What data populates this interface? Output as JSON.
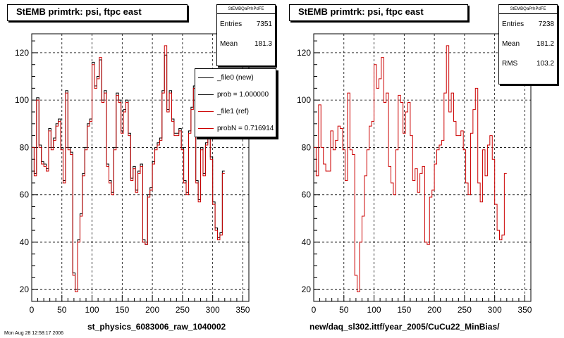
{
  "chart_data": [
    {
      "type": "histogram",
      "title": "StEMB primtrk: psi, ftpc east",
      "xlabel": "st_physics_6083006_raw_1040002",
      "xlim": [
        0,
        360
      ],
      "ylim": [
        15,
        128
      ],
      "xticks": [
        0,
        50,
        100,
        150,
        200,
        250,
        300,
        350
      ],
      "yticks": [
        20,
        40,
        60,
        80,
        100,
        120
      ],
      "grid": true,
      "bin_width": 4,
      "stats": {
        "name": "StEMBQaPrhPdFE",
        "rows": [
          {
            "label": "Entries",
            "value": "7351"
          },
          {
            "label": "Mean",
            "value": "181.3"
          }
        ]
      },
      "legend": {
        "placement": "top-right",
        "entries": [
          {
            "label": "_file0 (new)",
            "color": "#000000"
          },
          {
            "label": "prob = 1.000000",
            "color": "#000000"
          },
          {
            "label": "_file1 (ref)",
            "color": "#cc0000"
          },
          {
            "label": "probN = 0.716914",
            "color": "#cc0000"
          }
        ]
      },
      "series": [
        {
          "name": "_file0 (new)",
          "color": "#000000",
          "values": [
            80,
            69,
            101,
            81,
            74,
            73,
            71,
            88,
            80,
            84,
            90,
            92,
            80,
            66,
            104,
            80,
            78,
            27,
            20,
            41,
            52,
            69,
            80,
            90,
            92,
            116,
            106,
            110,
            117,
            100,
            104,
            73,
            66,
            61,
            80,
            103,
            100,
            87,
            96,
            100,
            86,
            67,
            72,
            62,
            70,
            73,
            41,
            39,
            60,
            63,
            74,
            80,
            82,
            84,
            104,
            119,
            96,
            104,
            92,
            86,
            86,
            88,
            80,
            66,
            61,
            87,
            97,
            106,
            66,
            58,
            80,
            69,
            82,
            86,
            76,
            57,
            46,
            42,
            44,
            70
          ]
        },
        {
          "name": "_file1 (ref)",
          "color": "#cc0000",
          "values": [
            80,
            68,
            100,
            80,
            73,
            72,
            70,
            87,
            79,
            83,
            89,
            91,
            79,
            65,
            103,
            79,
            77,
            26,
            19,
            40,
            51,
            68,
            79,
            89,
            91,
            115,
            105,
            109,
            118,
            99,
            103,
            72,
            65,
            60,
            79,
            102,
            99,
            86,
            95,
            99,
            85,
            66,
            71,
            61,
            69,
            72,
            40,
            39,
            59,
            62,
            73,
            79,
            81,
            83,
            103,
            123,
            95,
            103,
            91,
            85,
            85,
            87,
            79,
            65,
            60,
            86,
            96,
            105,
            65,
            57,
            79,
            68,
            81,
            85,
            75,
            56,
            45,
            41,
            43,
            69
          ]
        }
      ]
    },
    {
      "type": "histogram",
      "title": "StEMB primtrk: psi, ftpc east",
      "xlabel": "new/daq_sl302.ittf/year_2005/CuCu22_MinBias/",
      "xlim": [
        0,
        360
      ],
      "ylim": [
        15,
        128
      ],
      "xticks": [
        0,
        50,
        100,
        150,
        200,
        250,
        300,
        350
      ],
      "yticks": [
        20,
        40,
        60,
        80,
        100,
        120
      ],
      "grid": true,
      "bin_width": 4,
      "stats": {
        "name": "StEMBQaPrhPdFE",
        "rows": [
          {
            "label": "Entries",
            "value": "7238"
          },
          {
            "label": "Mean",
            "value": "181.2"
          },
          {
            "label": "RMS",
            "value": "103.2"
          }
        ]
      },
      "series": [
        {
          "name": "",
          "color": "#cc0000",
          "values": [
            80,
            68,
            98,
            80,
            73,
            70,
            70,
            87,
            79,
            83,
            89,
            88,
            79,
            66,
            103,
            79,
            77,
            26,
            19,
            40,
            51,
            68,
            79,
            89,
            91,
            115,
            105,
            109,
            118,
            99,
            103,
            72,
            65,
            60,
            79,
            102,
            99,
            86,
            95,
            99,
            85,
            66,
            71,
            61,
            69,
            72,
            40,
            39,
            59,
            62,
            73,
            79,
            81,
            83,
            103,
            123,
            95,
            103,
            91,
            85,
            85,
            87,
            79,
            65,
            60,
            86,
            96,
            105,
            65,
            57,
            79,
            68,
            81,
            85,
            75,
            56,
            45,
            41,
            43,
            69
          ]
        }
      ]
    }
  ],
  "footer": "Mon Aug 28 12:58:17 2006"
}
